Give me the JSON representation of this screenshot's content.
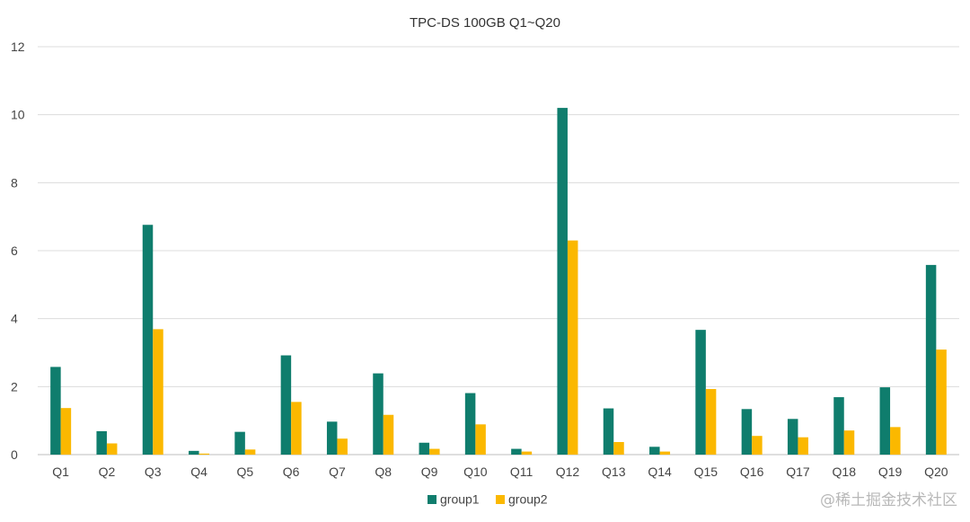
{
  "chart_data": {
    "type": "bar",
    "title": "TPC-DS 100GB Q1~Q20",
    "xlabel": "",
    "ylabel": "",
    "ylim": [
      0,
      12
    ],
    "yticks": [
      0,
      2,
      4,
      6,
      8,
      10,
      12
    ],
    "grid": true,
    "legend_position": "bottom-center",
    "categories": [
      "Q1",
      "Q2",
      "Q3",
      "Q4",
      "Q5",
      "Q6",
      "Q7",
      "Q8",
      "Q9",
      "Q10",
      "Q11",
      "Q12",
      "Q13",
      "Q14",
      "Q15",
      "Q16",
      "Q17",
      "Q18",
      "Q19",
      "Q20"
    ],
    "series": [
      {
        "name": "group1",
        "color": "#0f7d6d",
        "values": [
          2.58,
          0.69,
          6.76,
          0.11,
          0.67,
          2.92,
          0.97,
          2.39,
          0.35,
          1.81,
          0.17,
          10.2,
          1.36,
          0.23,
          3.67,
          1.34,
          1.05,
          1.69,
          1.98,
          5.58
        ]
      },
      {
        "name": "group2",
        "color": "#fbb800",
        "values": [
          1.37,
          0.33,
          3.69,
          0.03,
          0.15,
          1.55,
          0.47,
          1.17,
          0.17,
          0.89,
          0.09,
          6.3,
          0.37,
          0.09,
          1.93,
          0.55,
          0.51,
          0.71,
          0.81,
          3.09
        ]
      }
    ]
  },
  "watermark": "@稀土掘金技术社区"
}
